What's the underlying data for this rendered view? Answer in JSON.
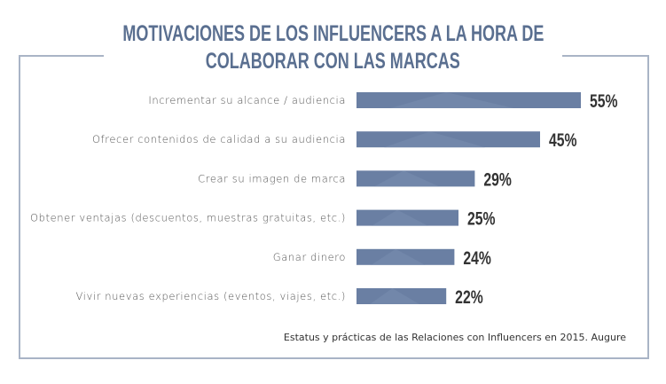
{
  "chart_data": {
    "type": "bar",
    "orientation": "horizontal",
    "title": "MOTIVACIONES DE LOS INFLUENCERS A LA HORA DE COLABORAR CON LAS MARCAS",
    "title_lines": [
      "MOTIVACIONES DE LOS INFLUENCERS A LA HORA DE",
      "COLABORAR CON LAS MARCAS"
    ],
    "categories": [
      "Incrementar su alcance / audiencia",
      "Ofrecer contenidos de calidad a su audiencia",
      "Crear su imagen de marca",
      "Obtener ventajas (descuentos, muestras gratuitas, etc.)",
      "Ganar dinero",
      "Vivir nuevas experiencias (eventos, viajes, etc.)"
    ],
    "values": [
      55,
      45,
      29,
      25,
      24,
      22
    ],
    "data_labels": [
      "55%",
      "45%",
      "29%",
      "25%",
      "24%",
      "22%"
    ],
    "unit": "%",
    "grid": false,
    "bar_color": "#6a7fa3",
    "title_color": "#5a6f90",
    "source": "Estatus y prácticas de las Relaciones con Influencers en 2015. Augure"
  }
}
